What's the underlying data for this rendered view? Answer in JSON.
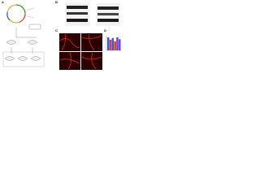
{
  "panels": [
    {
      "label": "A"
    },
    {
      "label": "B"
    },
    {
      "label": "C"
    },
    {
      "label": "D"
    }
  ],
  "bar_chart": {
    "values": [
      1.0,
      0.82,
      0.95,
      0.7,
      1.0,
      0.86
    ],
    "colors": [
      "#3b5bd6",
      "#d93a3a",
      "#3b5bd6",
      "#d93a3a",
      "#3b5bd6",
      "#8a3ad9"
    ]
  }
}
